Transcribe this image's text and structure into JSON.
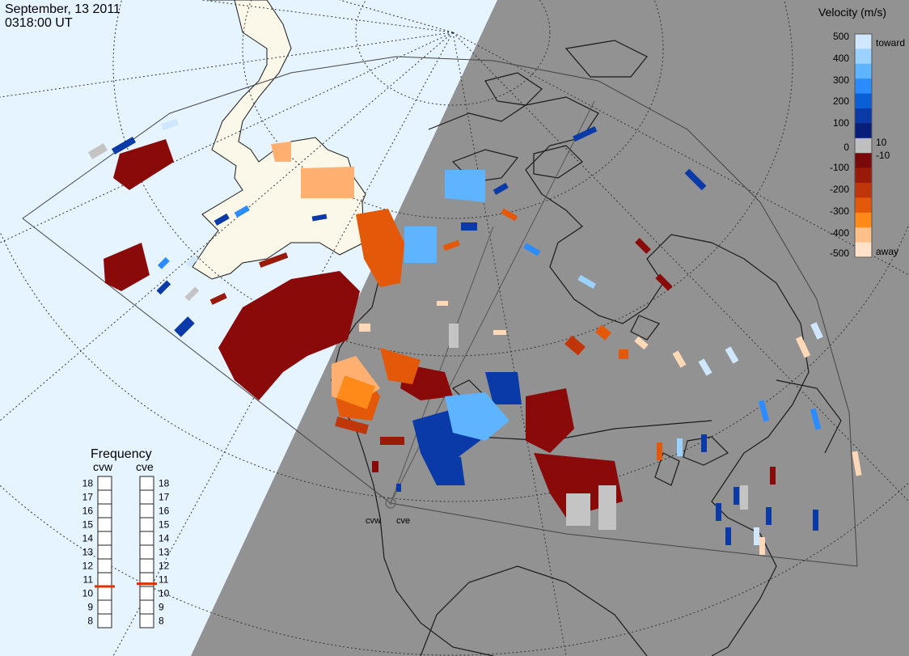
{
  "header": {
    "date": "September, 13 2011",
    "time": "0318:00 UT"
  },
  "legend": {
    "title": "Velocity (m/s)",
    "ticks": [
      "500",
      "400",
      "300",
      "200",
      "100",
      "10",
      "0",
      "-10",
      "-100",
      "-200",
      "-300",
      "-400",
      "-500"
    ],
    "toward_label": "toward",
    "away_label": "away",
    "colors": [
      "#cfe8ff",
      "#9cd2ff",
      "#5fb4ff",
      "#2a8cff",
      "#0a5fd6",
      "#0a3aa8",
      "#071f78",
      "#bfbfbf",
      "#7a0a0a",
      "#9a1a0a",
      "#c0350a",
      "#e4580a",
      "#ff8a1a",
      "#ffc08a",
      "#ffe0c8"
    ]
  },
  "frequency": {
    "title": "Frequency",
    "radars": [
      "cvw",
      "cve"
    ],
    "scale": [
      "18",
      "17",
      "16",
      "15",
      "14",
      "13",
      "12",
      "11",
      "10",
      "9",
      "8"
    ],
    "values_mhz": [
      10.5,
      10.7
    ]
  },
  "radar_labels": [
    "cvw",
    "cve"
  ],
  "colors": {
    "night": "#929292",
    "day": "#e6f4ff",
    "land_day": "#fbf8ea",
    "grid": "#333333",
    "coast": "#1a1a1a",
    "freq_marker": "#e03000"
  }
}
